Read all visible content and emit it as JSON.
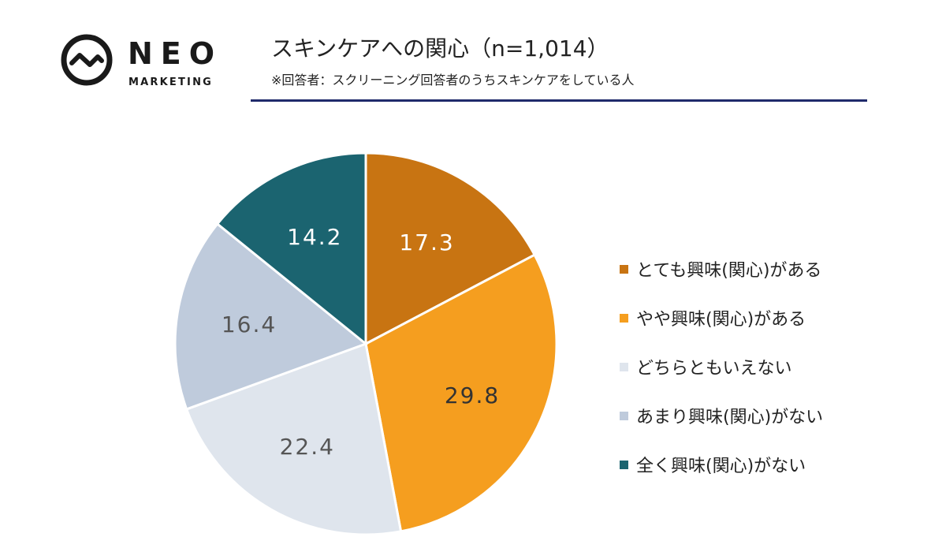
{
  "logo": {
    "name": "NEO",
    "sub": "MARKETING"
  },
  "header": {
    "title": "スキンケアへの関心（n=1,014）",
    "subtitle": "※回答者：スクリーニング回答者のうちスキンケアをしている人"
  },
  "chart_data": {
    "type": "pie",
    "title": "スキンケアへの関心（n=1,014）",
    "series": [
      {
        "name": "とても興味(関心)がある",
        "value": 17.3,
        "label": "17.3",
        "color": "#c87412",
        "label_color": "#ffffff"
      },
      {
        "name": "やや興味(関心)がある",
        "value": 29.8,
        "label": "29.8",
        "color": "#f59e1f",
        "label_color": "#333333"
      },
      {
        "name": "どちらともいえない",
        "value": 22.4,
        "label": "22.4",
        "color": "#dfe5ed",
        "label_color": "#555555"
      },
      {
        "name": "あまり興味(関心)がない",
        "value": 16.4,
        "label": "16.4",
        "color": "#bfcbdc",
        "label_color": "#555555"
      },
      {
        "name": "全く興味(関心)がない",
        "value": 14.2,
        "label": "14.2",
        "color": "#1b6470",
        "label_color": "#ffffff"
      }
    ],
    "legend_position": "right",
    "start_angle": "top",
    "direction": "clockwise"
  }
}
